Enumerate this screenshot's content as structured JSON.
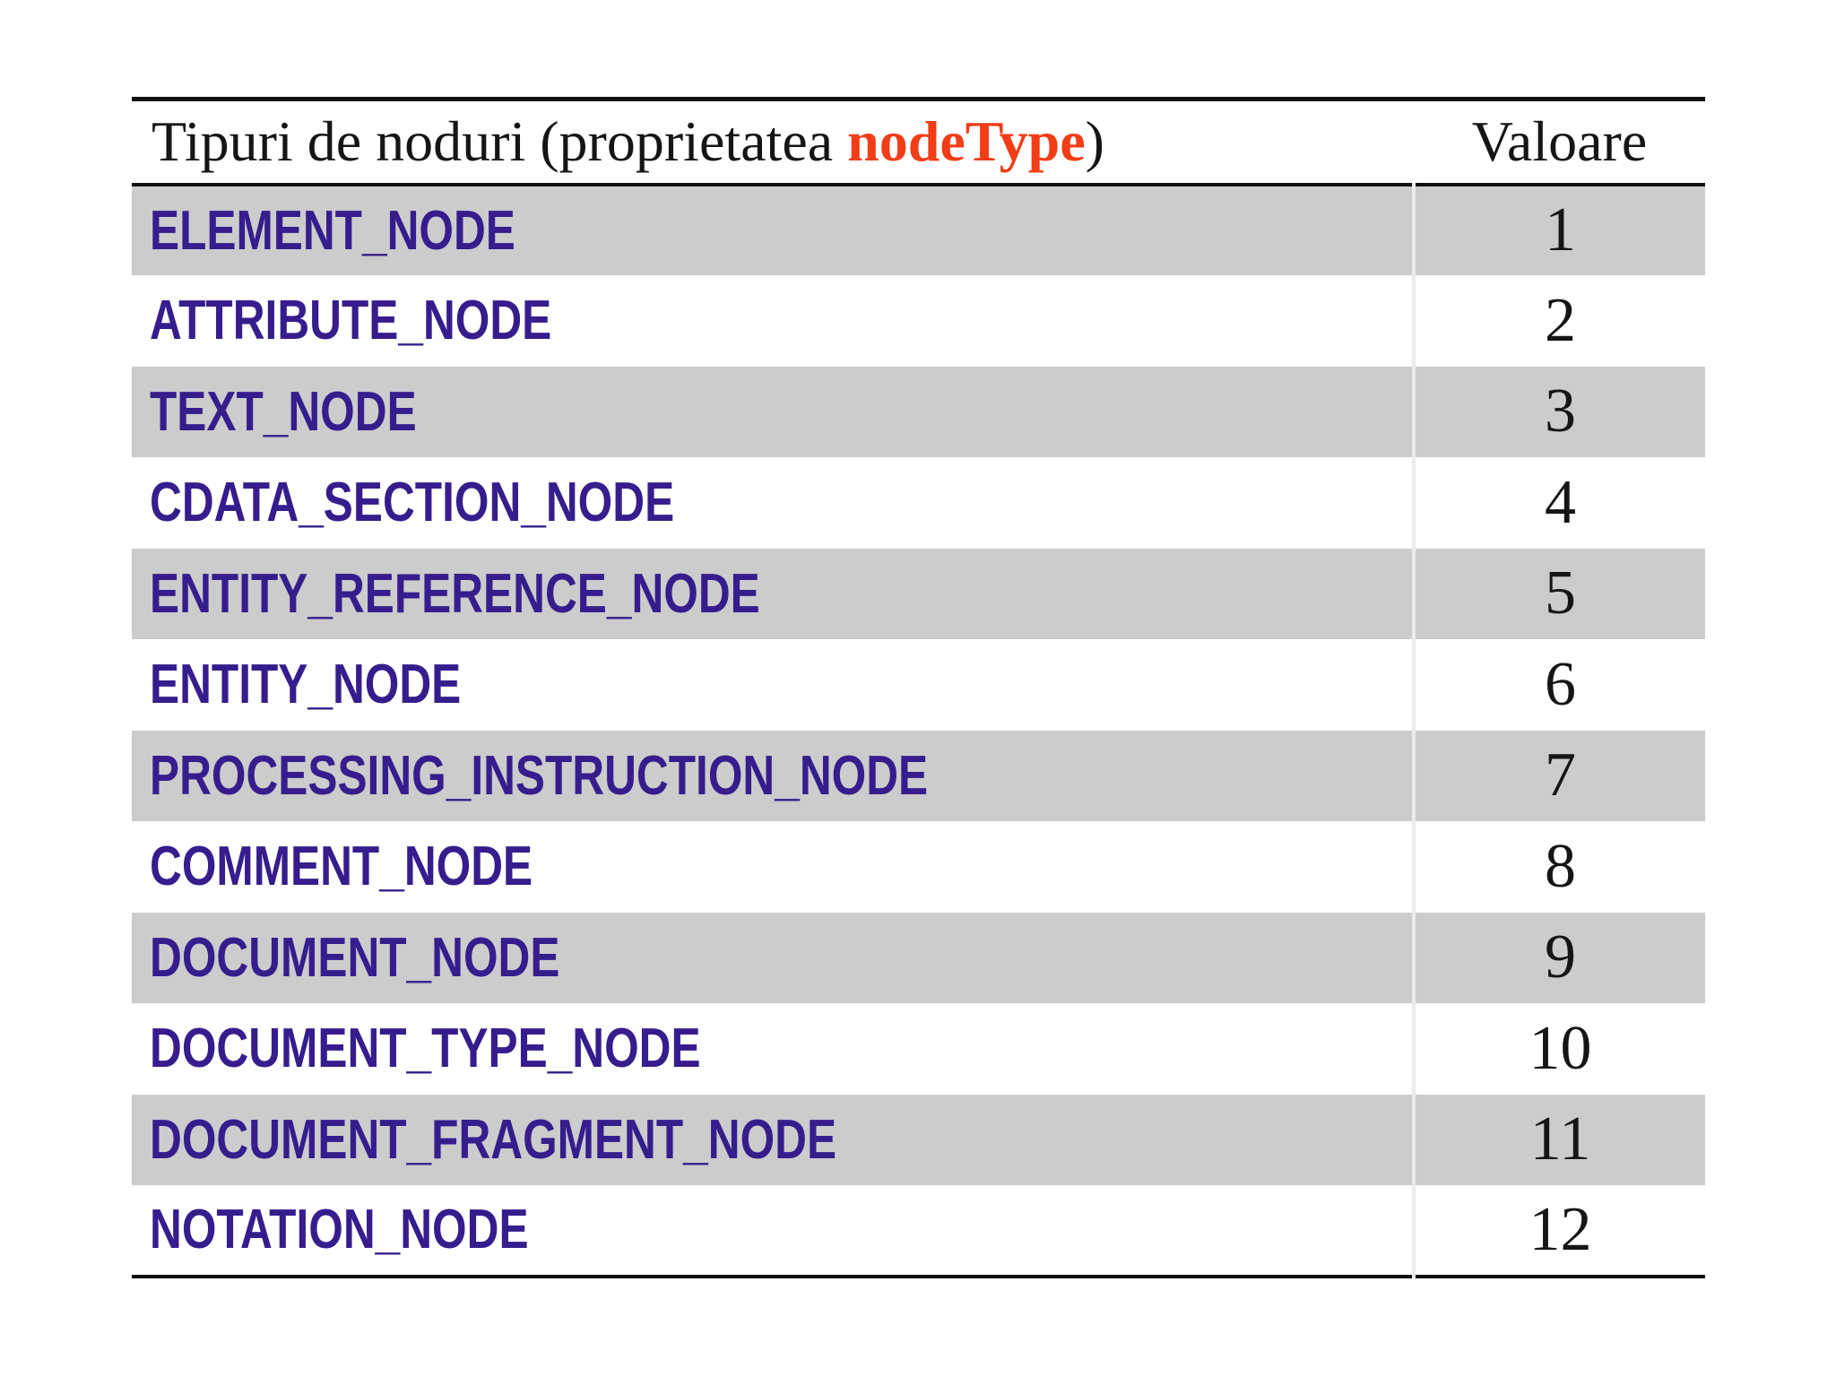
{
  "table": {
    "header": {
      "col1_prefix": "Tipuri de noduri (proprietatea ",
      "col1_highlight": "nodeType",
      "col1_suffix": ")",
      "col2": "Valoare"
    },
    "rows": [
      {
        "name": "ELEMENT_NODE",
        "value": "1"
      },
      {
        "name": "ATTRIBUTE_NODE",
        "value": "2"
      },
      {
        "name": "TEXT_NODE",
        "value": "3"
      },
      {
        "name": "CDATA_SECTION_NODE",
        "value": "4"
      },
      {
        "name": "ENTITY_REFERENCE_NODE",
        "value": "5"
      },
      {
        "name": "ENTITY_NODE",
        "value": "6"
      },
      {
        "name": "PROCESSING_INSTRUCTION_NODE",
        "value": "7"
      },
      {
        "name": "COMMENT_NODE",
        "value": "8"
      },
      {
        "name": "DOCUMENT_NODE",
        "value": "9"
      },
      {
        "name": "DOCUMENT_TYPE_NODE",
        "value": "10"
      },
      {
        "name": "DOCUMENT_FRAGMENT_NODE",
        "value": "11"
      },
      {
        "name": "NOTATION_NODE",
        "value": "12"
      }
    ]
  },
  "colors": {
    "label": "#361d8d",
    "highlight": "#f23d16",
    "stripe_bg": "#cccccc",
    "border": "#111111"
  }
}
